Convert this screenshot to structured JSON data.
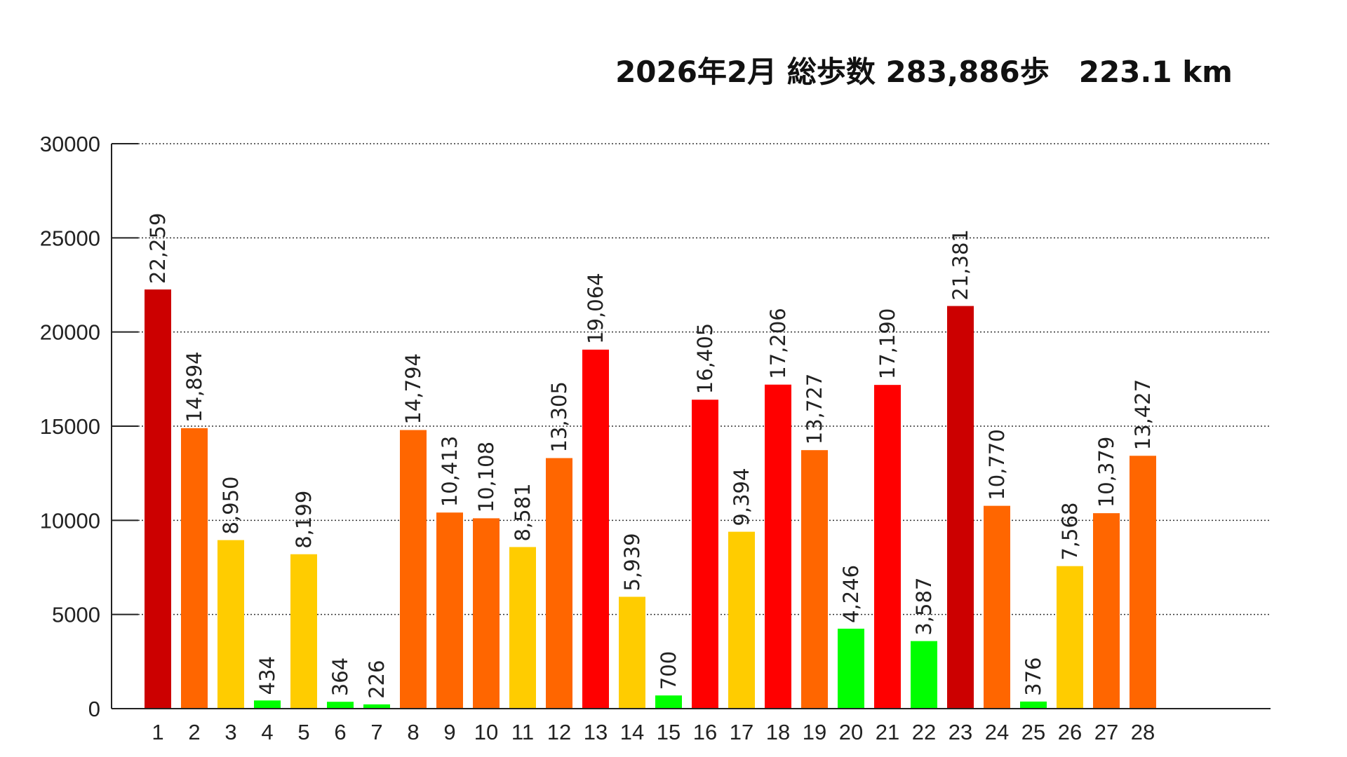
{
  "chart_data": {
    "type": "bar",
    "title": "2026年2月 総歩数 283,886歩　223.1 km",
    "xlabel": "",
    "ylabel": "",
    "ylim": [
      0,
      30000
    ],
    "yticks": [
      "0",
      "5000",
      "10000",
      "15000",
      "20000",
      "25000",
      "30000"
    ],
    "grid": true,
    "categories": [
      "1",
      "2",
      "3",
      "4",
      "5",
      "6",
      "7",
      "8",
      "9",
      "10",
      "11",
      "12",
      "13",
      "14",
      "15",
      "16",
      "17",
      "18",
      "19",
      "20",
      "21",
      "22",
      "23",
      "24",
      "25",
      "26",
      "27",
      "28"
    ],
    "values": [
      22259,
      14894,
      8950,
      434,
      8199,
      364,
      226,
      14794,
      10413,
      10108,
      8581,
      13305,
      19064,
      5939,
      700,
      16405,
      9394,
      17206,
      13727,
      4246,
      17190,
      3587,
      21381,
      10770,
      376,
      7568,
      10379,
      13427
    ],
    "value_labels": [
      "22,259",
      "14,894",
      "8,950",
      "434",
      "8,199",
      "364",
      "226",
      "14,794",
      "10,413",
      "10,108",
      "8,581",
      "13,305",
      "19,064",
      "5,939",
      "700",
      "16,405",
      "9,394",
      "17,206",
      "13,727",
      "4,246",
      "17,190",
      "3,587",
      "21,381",
      "10,770",
      "376",
      "7,568",
      "10,379",
      "13,427"
    ],
    "colors": {
      "over_20000": "#CC0000",
      "15000_20000": "#FF0000",
      "10000_15000": "#FF6600",
      "5000_10000": "#FFCC00",
      "under_5000": "#00FF00"
    },
    "axis_slots": 31
  }
}
